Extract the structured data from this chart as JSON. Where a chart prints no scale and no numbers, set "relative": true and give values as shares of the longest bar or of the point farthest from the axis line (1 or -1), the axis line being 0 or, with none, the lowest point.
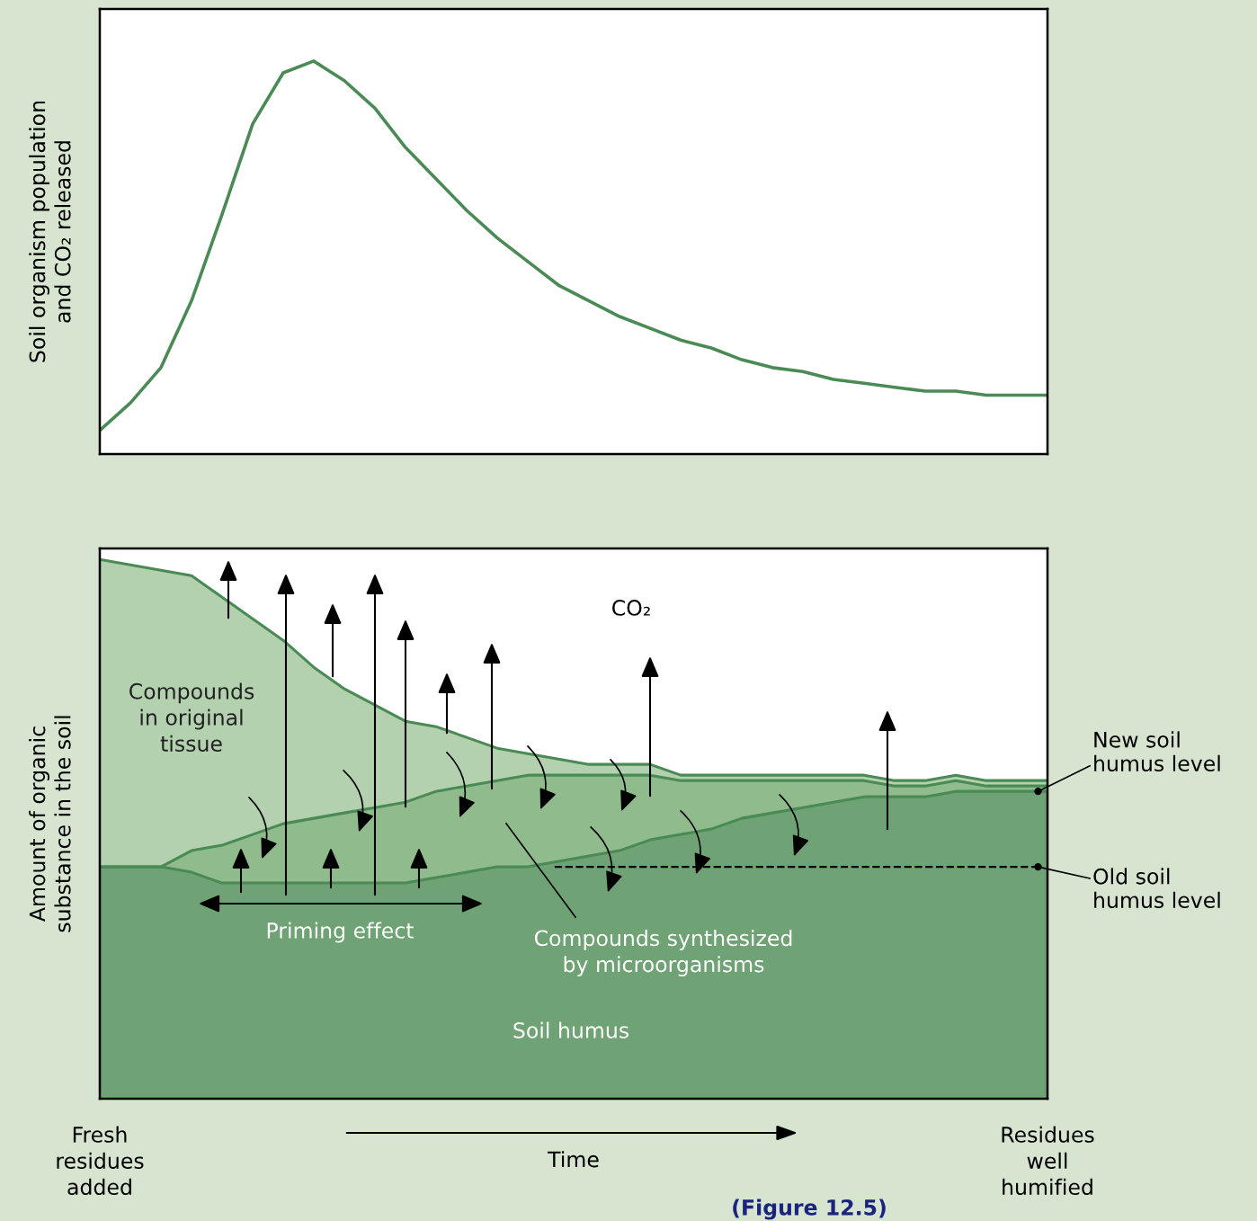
{
  "chart_data": [
    {
      "type": "line",
      "ylabel": "Soil organism population\nand CO₂ released",
      "relative": true,
      "tick_labels": false,
      "marker": "none",
      "line_style": "solid",
      "categories": [
        null,
        null,
        null,
        null,
        null,
        null,
        null,
        null,
        null,
        null,
        null,
        null,
        null,
        null,
        null,
        null,
        null,
        null,
        null,
        null,
        null,
        null,
        null,
        null,
        null,
        null,
        null,
        null,
        null,
        null,
        null,
        null
      ],
      "series": [
        {
          "color": "#4a8a55",
          "values": [
            0.06,
            0.13,
            0.22,
            0.39,
            0.61,
            0.84,
            0.97,
            1.0,
            0.95,
            0.88,
            0.78,
            0.7,
            0.62,
            0.55,
            0.49,
            0.43,
            0.39,
            0.35,
            0.32,
            0.29,
            0.27,
            0.24,
            0.22,
            0.21,
            0.19,
            0.18,
            0.17,
            0.16,
            0.16,
            0.15,
            0.15,
            0.15
          ]
        }
      ]
    },
    {
      "type": "area",
      "stacked": true,
      "relative": true,
      "tick_labels": "x",
      "ylabel": "Amount of organic\nsubstance in the soil",
      "xlabel": "Time",
      "categories": [
        "Fresh\nresidues\nadded",
        null,
        null,
        null,
        null,
        null,
        null,
        null,
        null,
        null,
        null,
        null,
        null,
        null,
        null,
        null,
        null,
        null,
        null,
        null,
        null,
        null,
        null,
        null,
        null,
        null,
        null,
        null,
        null,
        null,
        null,
        "Residues\nwell\nhumified"
      ],
      "series": [
        {
          "name": "Soil humus",
          "color": "#6fa274",
          "values": [
            0.43,
            0.43,
            0.43,
            0.42,
            0.4,
            0.4,
            0.4,
            0.4,
            0.4,
            0.4,
            0.4,
            0.41,
            0.42,
            0.43,
            0.43,
            0.44,
            0.45,
            0.46,
            0.48,
            0.49,
            0.5,
            0.52,
            0.53,
            0.54,
            0.55,
            0.56,
            0.56,
            0.56,
            0.57,
            0.57,
            0.57,
            0.57
          ]
        },
        {
          "name": "Compounds synthesized\nby microorganisms",
          "color": "#90bb8c",
          "values": [
            0,
            0,
            0,
            0.04,
            0.07,
            0.09,
            0.11,
            0.12,
            0.13,
            0.14,
            0.15,
            0.16,
            0.16,
            0.16,
            0.17,
            0.16,
            0.15,
            0.14,
            0.12,
            0.1,
            0.09,
            0.07,
            0.06,
            0.05,
            0.04,
            0.03,
            0.02,
            0.02,
            0.02,
            0.01,
            0.01,
            0.01
          ]
        },
        {
          "name": "Compounds\nin original\ntissue",
          "color": "#b3d1ae",
          "values": [
            0.57,
            0.56,
            0.55,
            0.51,
            0.46,
            0.4,
            0.34,
            0.28,
            0.23,
            0.19,
            0.15,
            0.12,
            0.09,
            0.06,
            0.04,
            0.03,
            0.02,
            0.02,
            0.02,
            0.01,
            0.01,
            0.01,
            0.01,
            0.01,
            0.01,
            0.01,
            0.01,
            0.01,
            0.01,
            0.01,
            0.01,
            0.01
          ]
        }
      ],
      "ref_lines": [
        {
          "axis": "y",
          "value": 0.43,
          "label": "Old soil\nhumus level",
          "line_style": "dashed",
          "color": "#000000"
        }
      ],
      "annotations": [
        "CO₂",
        "Priming effect",
        {
          "text": "New soil\nhumus level",
          "x": "Residues\nwell\nhumified",
          "y": 0.57
        },
        "(Figure 12.5)"
      ]
    }
  ]
}
